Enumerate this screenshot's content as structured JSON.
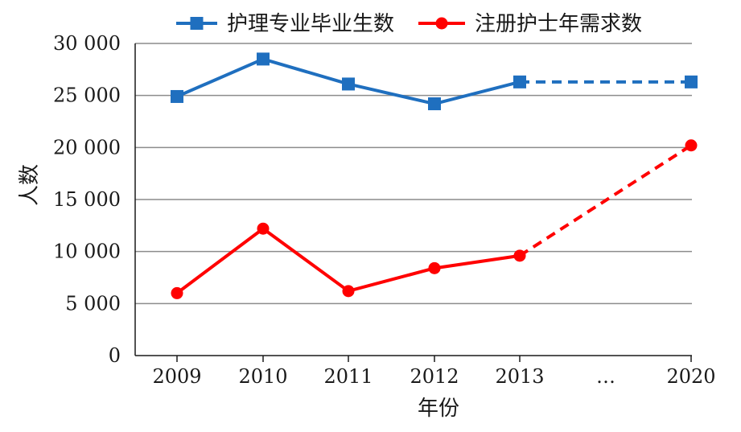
{
  "chart_data": {
    "type": "line",
    "categories": [
      "2009",
      "2010",
      "2011",
      "2012",
      "2013",
      "…",
      "2020"
    ],
    "xlabel": "年份",
    "ylabel": "人数",
    "ylim": [
      0,
      30000
    ],
    "yticks": [
      "0",
      "5 000",
      "10 000",
      "15 000",
      "20 000",
      "25 000",
      "30 000"
    ],
    "grid": true,
    "legend_position": "top",
    "series": [
      {
        "name": "护理专业毕业生数",
        "color": "#1f6fbf",
        "marker": "square",
        "values": [
          24900,
          28500,
          26100,
          24200,
          26300,
          null,
          26300
        ],
        "projected_from": "2013"
      },
      {
        "name": "注册护士年需求数",
        "color": "#ff0000",
        "marker": "circle",
        "values": [
          6000,
          12200,
          6200,
          8400,
          9600,
          null,
          20200
        ],
        "projected_from": "2013"
      }
    ]
  }
}
